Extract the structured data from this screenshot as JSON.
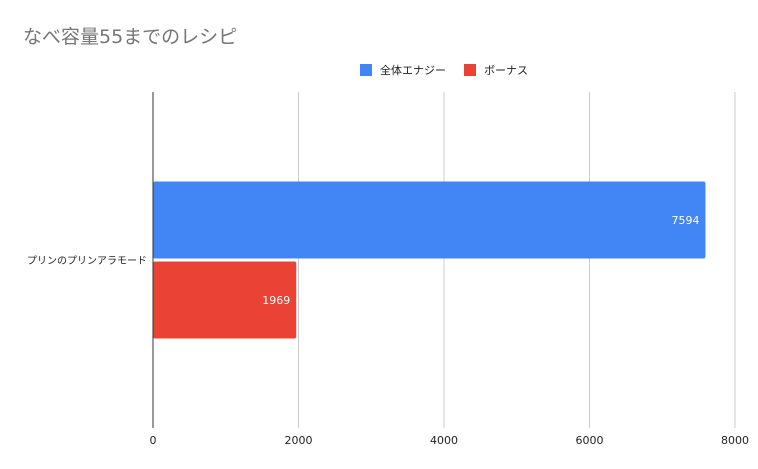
{
  "chart_data": {
    "type": "bar",
    "orientation": "horizontal",
    "title": "なべ容量55までのレシピ",
    "categories": [
      "プリンのプリンアラモード"
    ],
    "series": [
      {
        "name": "全体エナジー",
        "values": [
          7594
        ],
        "color": "#4285f4"
      },
      {
        "name": "ボーナス",
        "values": [
          1969
        ],
        "color": "#ea4335"
      }
    ],
    "xlim": [
      0,
      8000
    ],
    "xticks": [
      0,
      2000,
      4000,
      6000,
      8000
    ],
    "xlabel": "",
    "ylabel": "",
    "grid": true,
    "legend": "top",
    "data_labels": true
  }
}
